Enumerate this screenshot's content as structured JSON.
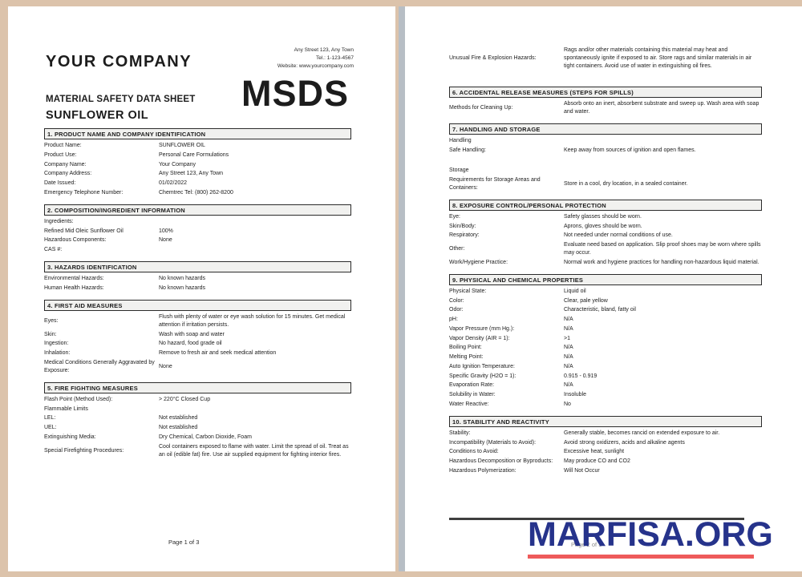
{
  "colors": {
    "canvas_bg": "#dcc3ab",
    "page_bg": "#ffffff",
    "gap_shadow": "#b7bec5",
    "section_bar_bg": "#f1f1ef",
    "section_bar_border": "#2b2b2b",
    "text": "#1c1c1c",
    "divider_dark": "#3f3f3f",
    "footer_gray": "#8a8a8a",
    "watermark_blue": "#26338b",
    "watermark_red": "#ee5b5b"
  },
  "page1": {
    "company_name": "YOUR COMPANY",
    "address_lines": [
      "Any Street 123, Any Town",
      "Tel.: 1-123-4567",
      "Website: www.yourcompany.com"
    ],
    "doc_type": "MATERIAL SAFETY DATA SHEET",
    "product_title": "SUNFLOWER OIL",
    "logo": "MSDS",
    "footer": "Page 1 of 3",
    "sections": [
      {
        "title": "1. PRODUCT NAME AND COMPANY IDENTIFICATION",
        "rows": [
          {
            "label": "Product Name:",
            "value": "SUNFLOWER OIL"
          },
          {
            "label": "Product Use:",
            "value": "Personal Care Formulations"
          },
          {
            "label": "Company Name:",
            "value": "Your Company"
          },
          {
            "label": "Company Address:",
            "value": "Any Street 123, Any Town"
          },
          {
            "label": "Date Issued:",
            "value": "01/02/2022"
          },
          {
            "label": "Emergency Telephone Number:",
            "value": "Chemtrec Tel: (800) 262-8200"
          }
        ]
      },
      {
        "title": "2. COMPOSITION/INGREDIENT INFORMATION",
        "rows": [
          {
            "label": "Ingredients:",
            "value": ""
          },
          {
            "label": "Refined Mid Oleic Sunflower Oil",
            "value": "100%"
          },
          {
            "label": "Hazardous Components:",
            "value": "None"
          },
          {
            "label": "CAS #:",
            "value": ""
          }
        ]
      },
      {
        "title": "3. HAZARDS IDENTIFICATION",
        "rows": [
          {
            "label": "Environmental Hazards:",
            "value": "No known hazards"
          },
          {
            "label": "Human Health Hazards:",
            "value": "No known hazards"
          }
        ]
      },
      {
        "title": "4. FIRST AID MEASURES",
        "rows": [
          {
            "label": "Eyes:",
            "value": "Flush with plenty of water or eye wash solution for 15 minutes. Get medical attention if irritation persists."
          },
          {
            "label": "Skin:",
            "value": "Wash with soap and water"
          },
          {
            "label": "Ingestion:",
            "value": "No hazard, food grade oil"
          },
          {
            "label": "Inhalation:",
            "value": "Remove to fresh air and seek medical attention"
          },
          {
            "label": "Medical Conditions Generally Aggravated by Exposure:",
            "value": "None"
          }
        ]
      },
      {
        "title": "5. FIRE FIGHTING MEASURES",
        "rows": [
          {
            "label": "Flash Point (Method Used):",
            "value": "> 220°C Closed Cup"
          },
          {
            "label": "Flammable Limits",
            "value": ""
          },
          {
            "label": "LEL:",
            "value": "Not established"
          },
          {
            "label": "UEL:",
            "value": "Not established"
          },
          {
            "label": "Extinguishing Media:",
            "value": "Dry Chemical, Carbon Dioxide, Foam"
          },
          {
            "label": "Special Firefighting Procedures:",
            "value": "Cool containers exposed to flame with water. Limit the spread of oil. Treat as an oil (edible fat) fire. Use air supplied equipment for fighting interior fires."
          }
        ]
      }
    ]
  },
  "page2": {
    "footer": "Page 2 of 3",
    "intro_rows": [
      {
        "label": "Unusual Fire & Explosion Hazards:",
        "value": "Rags and/or other materials containing this material may heat and spontaneously ignite if exposed to air. Store rags and similar materials in air tight containers. Avoid use of water in extinguishing oil fires."
      }
    ],
    "sections": [
      {
        "title": "6. ACCIDENTAL RELEASE MEASURES (STEPS FOR SPILLS)",
        "rows": [
          {
            "label": "Methods for Cleaning Up:",
            "value": "Absorb onto an inert, absorbent substrate and sweep up. Wash area with soap and water."
          }
        ]
      },
      {
        "title": "7. HANDLING AND STORAGE",
        "rows": [
          {
            "label": "Handling",
            "value": ""
          },
          {
            "label": "Safe Handling:",
            "value": "Keep away from sources of ignition and open flames."
          },
          {
            "gap": true
          },
          {
            "label": "Storage",
            "value": ""
          },
          {
            "label": "Requirements for Storage Areas and Containers:",
            "value": "Store in a cool, dry location, in a sealed container."
          }
        ]
      },
      {
        "title": "8. EXPOSURE CONTROL/PERSONAL PROTECTION",
        "rows": [
          {
            "label": "Eye:",
            "value": "Safety glasses should be worn."
          },
          {
            "label": "Skin/Body:",
            "value": "Aprons, gloves should be worn."
          },
          {
            "label": "Respiratory:",
            "value": "Not needed under normal conditions of use."
          },
          {
            "label": "Other:",
            "value": "Evaluate need based on application. Slip proof shoes may be worn where spills may occur."
          },
          {
            "label": "Work/Hygiene Practice:",
            "value": "Normal work and hygiene practices for handling non-hazardous liquid material."
          }
        ]
      },
      {
        "title": "9. PHYSICAL AND CHEMICAL PROPERTIES",
        "rows": [
          {
            "label": "Physical State:",
            "value": "Liquid oil"
          },
          {
            "label": "Color:",
            "value": "Clear, pale yellow"
          },
          {
            "label": "Odor:",
            "value": "Characteristic, bland, fatty oil"
          },
          {
            "label": "pH:",
            "value": "N/A"
          },
          {
            "label": "Vapor Pressure (mm Hg.):",
            "value": "N/A"
          },
          {
            "label": "Vapor Density (AIR = 1):",
            "value": ">1"
          },
          {
            "label": "Boiling Point:",
            "value": "N/A"
          },
          {
            "label": "Melting Point:",
            "value": "N/A"
          },
          {
            "label": "Auto Ignition Temperature:",
            "value": "N/A"
          },
          {
            "label": "Specific Gravity (H2O = 1):",
            "value": "0.915 - 0.919"
          },
          {
            "label": "Evaporation Rate:",
            "value": "N/A"
          },
          {
            "label": "Solubility in Water:",
            "value": "Insoluble"
          },
          {
            "label": "Water Reactive:",
            "value": "No"
          }
        ]
      },
      {
        "title": "10. STABILITY AND REACTIVITY",
        "rows": [
          {
            "label": "Stability:",
            "value": "Generally stable, becomes rancid on extended exposure to air."
          },
          {
            "label": "Incompatibility (Materials to Avoid):",
            "value": "Avoid strong oxidizers, acids and alkaline agents"
          },
          {
            "label": "Conditions to Avoid:",
            "value": "Excessive heat, sunlight"
          },
          {
            "label": "Hazardous Decomposition or Byproducts:",
            "value": "May produce CO and CO2"
          },
          {
            "label": "Hazardous Polymerization:",
            "value": "Will Not Occur"
          }
        ]
      }
    ]
  },
  "watermark": {
    "text": "MARFISA.ORG"
  }
}
